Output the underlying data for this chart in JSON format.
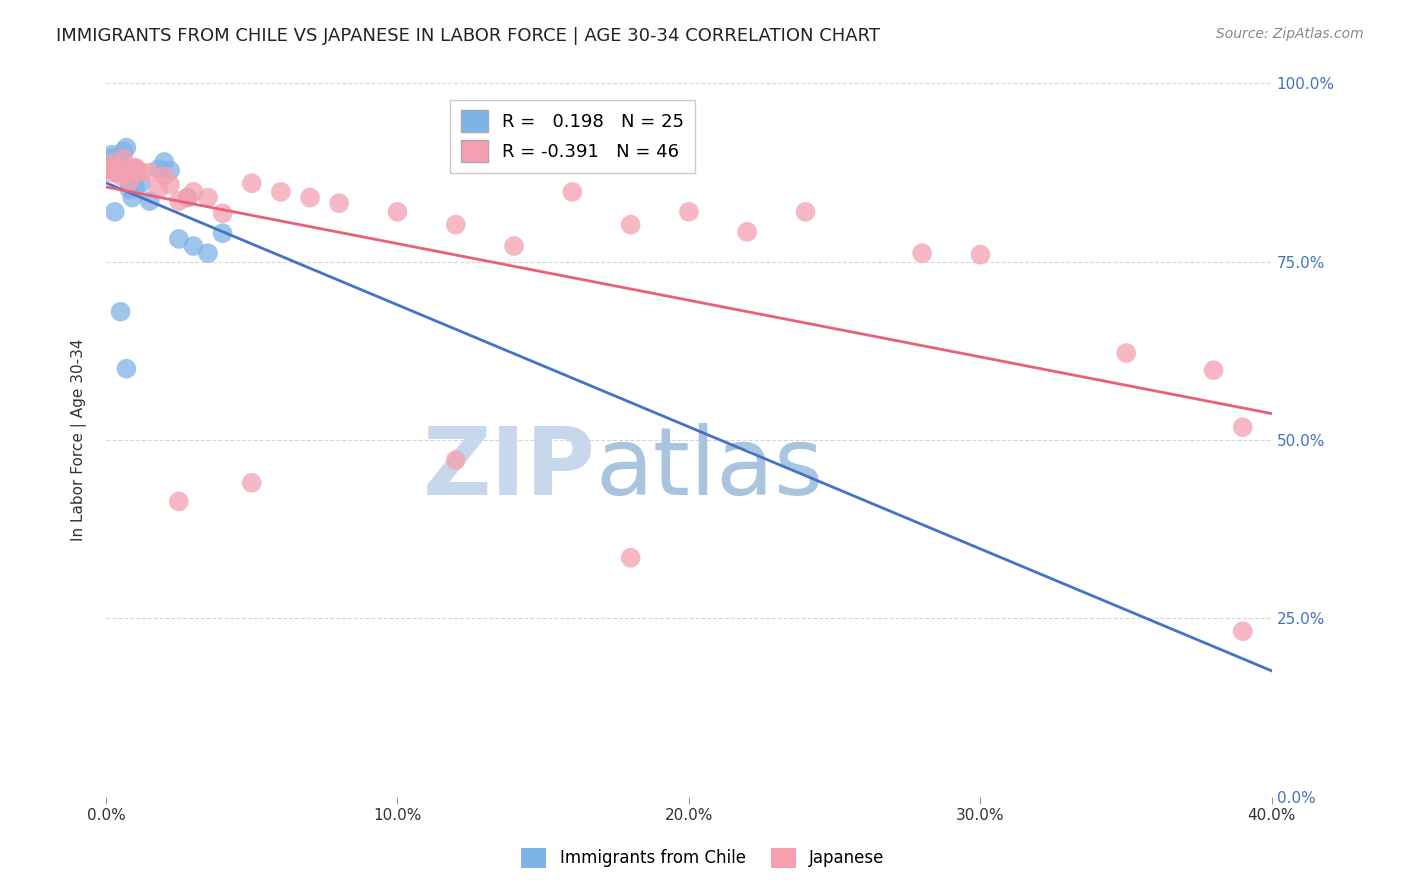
{
  "title": "IMMIGRANTS FROM CHILE VS JAPANESE IN LABOR FORCE | AGE 30-34 CORRELATION CHART",
  "source": "Source: ZipAtlas.com",
  "ylabel": "In Labor Force | Age 30-34",
  "xlim": [
    0.0,
    0.4
  ],
  "ylim": [
    0.0,
    1.0
  ],
  "xtick_labels": [
    "0.0%",
    "10.0%",
    "20.0%",
    "30.0%",
    "40.0%"
  ],
  "xtick_vals": [
    0.0,
    0.1,
    0.2,
    0.3,
    0.4
  ],
  "ytick_labels_right": [
    "100.0%",
    "75.0%",
    "50.0%",
    "25.0%",
    "0.0%"
  ],
  "ytick_vals": [
    1.0,
    0.75,
    0.5,
    0.25,
    0.0
  ],
  "chile_R": 0.198,
  "chile_N": 25,
  "japan_R": -0.391,
  "japan_N": 46,
  "chile_color": "#7EB3E8",
  "japan_color": "#F4A0B0",
  "chile_line_color": "#4472C4",
  "japan_line_color": "#E8607A",
  "watermark_zip_color": "#C8D8EC",
  "watermark_atlas_color": "#A8C4DE",
  "chile_x": [
    0.001,
    0.002,
    0.002,
    0.003,
    0.004,
    0.005,
    0.006,
    0.007,
    0.008,
    0.009,
    0.01,
    0.01,
    0.012,
    0.015,
    0.018,
    0.02,
    0.022,
    0.025,
    0.028,
    0.03,
    0.035,
    0.003,
    0.005,
    0.04,
    0.007
  ],
  "chile_y": [
    0.88,
    0.9,
    0.895,
    0.885,
    0.875,
    0.89,
    0.905,
    0.91,
    0.852,
    0.84,
    0.88,
    0.855,
    0.86,
    0.835,
    0.88,
    0.89,
    0.878,
    0.782,
    0.84,
    0.772,
    0.762,
    0.82,
    0.68,
    0.79,
    0.6
  ],
  "japan_x": [
    0.001,
    0.002,
    0.002,
    0.003,
    0.004,
    0.004,
    0.005,
    0.005,
    0.006,
    0.007,
    0.008,
    0.009,
    0.01,
    0.01,
    0.012,
    0.015,
    0.018,
    0.02,
    0.022,
    0.025,
    0.028,
    0.03,
    0.035,
    0.04,
    0.05,
    0.06,
    0.07,
    0.08,
    0.1,
    0.12,
    0.14,
    0.16,
    0.18,
    0.2,
    0.22,
    0.24,
    0.28,
    0.3,
    0.35,
    0.38,
    0.39,
    0.12,
    0.05,
    0.025,
    0.18,
    0.39
  ],
  "japan_y": [
    0.88,
    0.875,
    0.888,
    0.88,
    0.878,
    0.876,
    0.88,
    0.87,
    0.895,
    0.88,
    0.862,
    0.875,
    0.882,
    0.88,
    0.876,
    0.875,
    0.852,
    0.87,
    0.858,
    0.835,
    0.84,
    0.848,
    0.84,
    0.818,
    0.86,
    0.848,
    0.84,
    0.832,
    0.82,
    0.802,
    0.772,
    0.848,
    0.802,
    0.82,
    0.792,
    0.82,
    0.762,
    0.76,
    0.622,
    0.598,
    0.518,
    0.472,
    0.44,
    0.414,
    0.335,
    0.232
  ]
}
